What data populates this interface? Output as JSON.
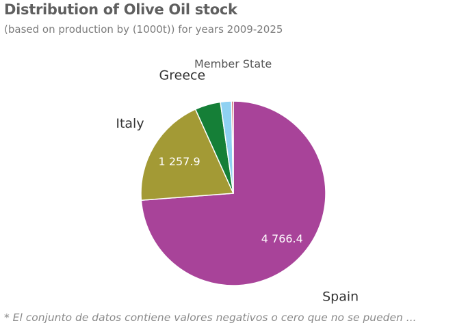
{
  "header": {
    "title": "Distribution of Olive Oil stock",
    "subtitle": "(based on production by (1000t)) for years 2009-2025"
  },
  "legend_title": "Member State",
  "footnote": "* El conjunto de datos contiene valores negativos o cero que no se pueden ...",
  "chart_data": {
    "type": "pie",
    "title": "Distribution of Olive Oil stock",
    "subtitle": "(based on production by (1000t)) for years 2009-2025",
    "legend_title": "Member State",
    "start_angle_deg": 0,
    "direction": "clockwise",
    "slices": [
      {
        "label": "Spain",
        "value": 4766.4,
        "value_label": "4 766.4",
        "color": "#a84399",
        "show_label": true,
        "show_value": true
      },
      {
        "label": "Italy",
        "value": 1257.9,
        "value_label": "1 257.9",
        "color": "#a39a35",
        "show_label": true,
        "show_value": true
      },
      {
        "label": "Greece",
        "value": 290,
        "value_label": "",
        "color": "#157f37",
        "show_label": true,
        "show_value": false
      },
      {
        "label": "",
        "value": 125,
        "value_label": "",
        "color": "#8fd1f2",
        "show_label": false,
        "show_value": false
      },
      {
        "label": "",
        "value": 20,
        "value_label": "",
        "color": "#c0504d",
        "show_label": false,
        "show_value": false
      }
    ]
  }
}
